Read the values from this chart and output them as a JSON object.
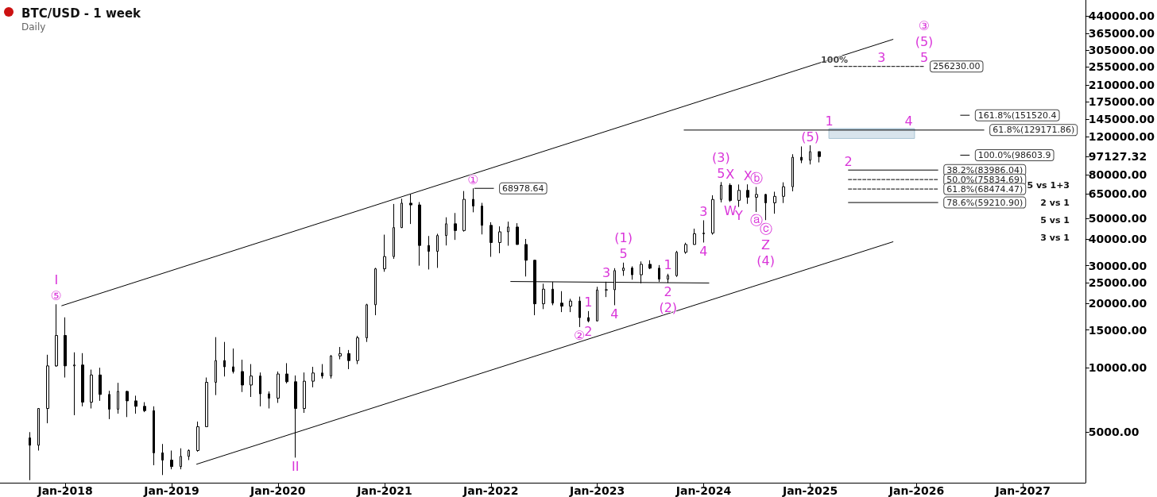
{
  "chart_data": {
    "type": "candlestick",
    "title": "BTC/USD - 1 week",
    "subtitle": "Daily",
    "color": "#000000",
    "x": [
      "2017-09",
      "2017-10",
      "2017-11",
      "2017-12",
      "2018-01",
      "2018-02",
      "2018-03",
      "2018-04",
      "2018-05",
      "2018-06",
      "2018-07",
      "2018-08",
      "2018-09",
      "2018-10",
      "2018-11",
      "2018-12",
      "2019-01",
      "2019-02",
      "2019-03",
      "2019-04",
      "2019-05",
      "2019-06",
      "2019-07",
      "2019-08",
      "2019-09",
      "2019-10",
      "2019-11",
      "2019-12",
      "2020-01",
      "2020-02",
      "2020-03",
      "2020-04",
      "2020-05",
      "2020-06",
      "2020-07",
      "2020-08",
      "2020-09",
      "2020-10",
      "2020-11",
      "2020-12",
      "2021-01",
      "2021-02",
      "2021-03",
      "2021-04",
      "2021-05",
      "2021-06",
      "2021-07",
      "2021-08",
      "2021-09",
      "2021-10",
      "2021-11",
      "2021-12",
      "2022-01",
      "2022-02",
      "2022-03",
      "2022-04",
      "2022-05",
      "2022-06",
      "2022-07",
      "2022-08",
      "2022-09",
      "2022-10",
      "2022-11",
      "2022-12",
      "2023-01",
      "2023-02",
      "2023-03",
      "2023-04",
      "2023-05",
      "2023-06",
      "2023-07",
      "2023-08",
      "2023-09",
      "2023-10",
      "2023-11",
      "2023-12",
      "2024-01",
      "2024-02",
      "2024-03",
      "2024-04",
      "2024-05",
      "2024-06",
      "2024-07",
      "2024-08",
      "2024-09",
      "2024-10",
      "2024-11",
      "2024-12",
      "2025-01",
      "2025-02"
    ],
    "ohlc": [
      [
        4700,
        5000,
        2980,
        4340
      ],
      [
        4340,
        6470,
        4100,
        6450
      ],
      [
        6450,
        11500,
        5500,
        10200
      ],
      [
        10200,
        19800,
        10100,
        14150
      ],
      [
        14150,
        17200,
        9000,
        10200
      ],
      [
        10200,
        11800,
        6000,
        10300
      ],
      [
        10300,
        11700,
        6600,
        6900
      ],
      [
        6900,
        9800,
        6450,
        9250
      ],
      [
        9250,
        10000,
        7000,
        7500
      ],
      [
        7500,
        7800,
        5750,
        6400
      ],
      [
        6400,
        8500,
        6100,
        7750
      ],
      [
        7750,
        7800,
        5880,
        7000
      ],
      [
        7000,
        7400,
        6100,
        6600
      ],
      [
        6600,
        6900,
        6200,
        6300
      ],
      [
        6300,
        6600,
        3500,
        4000
      ],
      [
        4000,
        4400,
        3150,
        3700
      ],
      [
        3700,
        4100,
        3350,
        3450
      ],
      [
        3450,
        4200,
        3350,
        3850
      ],
      [
        3850,
        4150,
        3700,
        4100
      ],
      [
        4100,
        5600,
        4050,
        5300
      ],
      [
        5300,
        9000,
        5300,
        8550
      ],
      [
        8550,
        13900,
        7450,
        10800
      ],
      [
        10800,
        13200,
        9100,
        10100
      ],
      [
        10100,
        12300,
        9400,
        9600
      ],
      [
        9600,
        10900,
        7700,
        8300
      ],
      [
        8300,
        10400,
        7300,
        9150
      ],
      [
        9150,
        9500,
        6600,
        7550
      ],
      [
        7550,
        7750,
        6450,
        7200
      ],
      [
        7200,
        9600,
        6850,
        9350
      ],
      [
        9350,
        10500,
        8450,
        8600
      ],
      [
        8600,
        9200,
        3800,
        6450
      ],
      [
        6450,
        9500,
        6150,
        8650
      ],
      [
        8650,
        10100,
        8100,
        9450
      ],
      [
        9450,
        10400,
        8900,
        9150
      ],
      [
        9150,
        11450,
        8900,
        11350
      ],
      [
        11350,
        12500,
        10950,
        11650
      ],
      [
        11650,
        12100,
        9850,
        10800
      ],
      [
        10800,
        14100,
        10400,
        13800
      ],
      [
        13800,
        19900,
        13200,
        19700
      ],
      [
        19700,
        29300,
        17600,
        29000
      ],
      [
        29000,
        41900,
        28100,
        33100
      ],
      [
        33100,
        58300,
        32300,
        45200
      ],
      [
        45200,
        61700,
        45000,
        58800
      ],
      [
        58800,
        64800,
        47000,
        57700
      ],
      [
        57700,
        59500,
        30000,
        37300
      ],
      [
        37300,
        41300,
        28800,
        35000
      ],
      [
        35000,
        42300,
        29300,
        41500
      ],
      [
        41500,
        50500,
        37300,
        47100
      ],
      [
        47100,
        52900,
        39600,
        43800
      ],
      [
        43800,
        67000,
        43300,
        61300
      ],
      [
        61300,
        68978.64,
        53300,
        57000
      ],
      [
        57000,
        59000,
        42000,
        46300
      ],
      [
        46300,
        47900,
        33000,
        38500
      ],
      [
        38500,
        45800,
        34300,
        43200
      ],
      [
        43200,
        48200,
        37200,
        45500
      ],
      [
        45500,
        47400,
        37600,
        37700
      ],
      [
        37700,
        40000,
        26700,
        31800
      ],
      [
        31800,
        31900,
        17600,
        19900
      ],
      [
        19900,
        24700,
        18800,
        23300
      ],
      [
        23300,
        25200,
        19600,
        20050
      ],
      [
        20050,
        22800,
        18200,
        19400
      ],
      [
        19400,
        21000,
        18200,
        20500
      ],
      [
        20500,
        21500,
        15500,
        17150
      ],
      [
        17150,
        18400,
        16300,
        16550
      ],
      [
        16550,
        23900,
        16500,
        23100
      ],
      [
        23100,
        25250,
        21400,
        23150
      ],
      [
        23150,
        29200,
        19600,
        28450
      ],
      [
        28450,
        31000,
        26900,
        29250
      ],
      [
        29250,
        29800,
        25800,
        27200
      ],
      [
        27200,
        31400,
        24800,
        30450
      ],
      [
        30450,
        31800,
        28900,
        29200
      ],
      [
        29200,
        30200,
        25200,
        25950
      ],
      [
        25950,
        27500,
        24900,
        26950
      ],
      [
        26950,
        35200,
        26600,
        34650
      ],
      [
        34650,
        38400,
        34100,
        37700
      ],
      [
        37700,
        44700,
        37600,
        42300
      ],
      [
        42300,
        48900,
        38500,
        42600
      ],
      [
        42600,
        64000,
        41900,
        61200
      ],
      [
        61200,
        73800,
        59300,
        71300
      ],
      [
        71300,
        72800,
        59600,
        60600
      ],
      [
        60600,
        71900,
        56500,
        67500
      ],
      [
        67500,
        72000,
        58400,
        62700
      ],
      [
        62700,
        70000,
        53500,
        64600
      ],
      [
        64600,
        65000,
        49000,
        59000
      ],
      [
        59000,
        66500,
        52500,
        63300
      ],
      [
        63300,
        73600,
        58900,
        70200
      ],
      [
        70200,
        99600,
        66800,
        96400
      ],
      [
        96400,
        108300,
        90500,
        93400
      ],
      [
        93400,
        109600,
        89200,
        102400
      ],
      [
        102400,
        102500,
        91200,
        97127.32
      ]
    ],
    "series": [
      {
        "type": "line",
        "color": "#000000",
        "line_style": "solid",
        "x": [
          "2017-12-20",
          "2025-10-12"
        ],
        "values": [
          19500,
          343000
        ]
      },
      {
        "type": "line",
        "color": "#000000",
        "line_style": "solid",
        "x": [
          "2019-03-28",
          "2025-10-12"
        ],
        "values": [
          3540,
          38800
        ]
      },
      {
        "type": "line",
        "color": "#000000",
        "line_style": "solid",
        "x": [
          "2022-03-10",
          "2024-01-19"
        ],
        "values": [
          25300,
          24900
        ]
      },
      {
        "type": "line",
        "name": "68978.64",
        "color": "#000000",
        "line_style": "solid",
        "x": [
          "2021-11-06",
          "2022-01-10"
        ],
        "values": [
          68978.64,
          68978.64
        ]
      },
      {
        "type": "line",
        "name": "61.8%(129171.86)",
        "color": "#000000",
        "line_style": "solid",
        "x": [
          "2023-10-26",
          "2026-08-20"
        ],
        "values": [
          129171.86,
          129171.86
        ]
      },
      {
        "type": "line",
        "color": "#a9c4d4",
        "line_style": "solid",
        "x": [
          "2025-03-06",
          "2025-12-25"
        ],
        "values": [
          131000,
          131000
        ],
        "lower": [
          118000,
          118000
        ],
        "upper": [
          131000,
          131000
        ]
      },
      {
        "type": "line",
        "name": "256230.00",
        "color": "#000000",
        "line_style": "dashed",
        "x": [
          "2025-03-25",
          "2026-01-27"
        ],
        "values": [
          256230,
          256230
        ]
      },
      {
        "type": "line",
        "name": "38.2%(83986.04)",
        "color": "#000000",
        "line_style": "solid",
        "x": [
          "2025-05-12",
          "2026-03-15"
        ],
        "values": [
          83986.04,
          83986.04
        ]
      },
      {
        "type": "line",
        "name": "50.0%(75834.69)",
        "color": "#000000",
        "line_style": "dashed",
        "x": [
          "2025-05-12",
          "2026-03-15"
        ],
        "values": [
          75834.69,
          75834.69
        ]
      },
      {
        "type": "line",
        "name": "61.8%(68474.47)",
        "color": "#000000",
        "line_style": "dashed",
        "x": [
          "2025-05-12",
          "2026-03-15"
        ],
        "values": [
          68474.47,
          68474.47
        ]
      },
      {
        "type": "line",
        "name": "78.6%(59210.90)",
        "color": "#000000",
        "line_style": "solid",
        "x": [
          "2025-05-12",
          "2026-03-15"
        ],
        "values": [
          59210.9,
          59210.9
        ]
      },
      {
        "type": "line",
        "name": "161.8%(151520.4",
        "color": "#000000",
        "line_style": "solid",
        "x": [
          "2026-06-01",
          "2026-07-01"
        ],
        "values": [
          151520.4,
          151520.4
        ]
      },
      {
        "type": "line",
        "name": "100.0%(98603.9",
        "color": "#000000",
        "line_style": "solid",
        "x": [
          "2026-06-01",
          "2026-07-01"
        ],
        "values": [
          98603.9,
          98603.9
        ]
      }
    ],
    "annotations": [
      {
        "text": "⑤",
        "x": "2017-12",
        "y": 19800
      },
      {
        "text": "I",
        "x": "2017-12",
        "y": 19800
      },
      {
        "text": "II",
        "x": "2020-03",
        "y": 3800
      },
      {
        "text": "①",
        "x": "2021-11",
        "y": 68978.64
      },
      {
        "text": "②",
        "x": "2022-11",
        "y": 15500
      },
      {
        "text": "2",
        "x": "2022-12",
        "y": 16300
      },
      {
        "text": "1",
        "x": "2022-12",
        "y": 18400
      },
      {
        "text": "3",
        "x": "2023-02",
        "y": 25250
      },
      {
        "text": "4",
        "x": "2023-03",
        "y": 19600
      },
      {
        "text": "5",
        "x": "2023-04",
        "y": 31000
      },
      {
        "text": "(1)",
        "x": "2023-04",
        "y": 31000
      },
      {
        "text": "1",
        "x": "2023-09",
        "y": 27500
      },
      {
        "text": "2",
        "x": "2023-09",
        "y": 24900
      },
      {
        "text": "(2)",
        "x": "2023-09",
        "y": 24900
      },
      {
        "text": "3",
        "x": "2024-01",
        "y": 48900
      },
      {
        "text": "4",
        "x": "2024-01",
        "y": 38500
      },
      {
        "text": "5",
        "x": "2024-03",
        "y": 73800
      },
      {
        "text": "(3)",
        "x": "2024-03",
        "y": 73800
      },
      {
        "text": "X",
        "x": "2024-04",
        "y": 72800
      },
      {
        "text": "W",
        "x": "2024-04",
        "y": 59600
      },
      {
        "text": "Y",
        "x": "2024-05",
        "y": 56500
      },
      {
        "text": "X",
        "x": "2024-06",
        "y": 72000
      },
      {
        "text": "ⓐ",
        "x": "2024-07",
        "y": 53500
      },
      {
        "text": "ⓑ",
        "x": "2024-07",
        "y": 70000
      },
      {
        "text": "ⓒ",
        "x": "2024-08",
        "y": 49000
      },
      {
        "text": "Z",
        "x": "2024-08",
        "y": 49000
      },
      {
        "text": "(4)",
        "x": "2024-08",
        "y": 49000
      },
      {
        "text": "(5)",
        "x": "2025-01",
        "y": 109600
      },
      {
        "text": "1",
        "x": "2025-03-07",
        "y": 129171.86
      },
      {
        "text": "2",
        "x": "2025-05-12",
        "y": 83986.04
      },
      {
        "text": "3",
        "x": "2025-09-03",
        "y": 256230
      },
      {
        "text": "4",
        "x": "2025-12-05",
        "y": 129171.86
      },
      {
        "text": "5",
        "x": "2026-01-27",
        "y": 256230
      },
      {
        "text": "(5)",
        "x": "2026-01-27",
        "y": 256230
      },
      {
        "text": "③",
        "x": "2026-01-27",
        "y": 256230
      },
      {
        "text": "100%",
        "x": "2025-03-25",
        "y": 256230
      },
      "5 vs 1+3",
      "2 vs 1",
      "5 vs 1",
      "3 vs 1"
    ],
    "xlim": [
      "2017-05-22",
      "2027-08-03"
    ],
    "xticks": [
      {
        "value": "2018-01",
        "label": "Jan-2018"
      },
      {
        "value": "2019-01",
        "label": "Jan-2019"
      },
      {
        "value": "2020-01",
        "label": "Jan-2020"
      },
      {
        "value": "2021-01",
        "label": "Jan-2021"
      },
      {
        "value": "2022-01",
        "label": "Jan-2022"
      },
      {
        "value": "2023-01",
        "label": "Jan-2023"
      },
      {
        "value": "2024-01",
        "label": "Jan-2024"
      },
      {
        "value": "2025-01",
        "label": "Jan-2025"
      },
      {
        "value": "2026-01",
        "label": "Jan-2026"
      },
      {
        "value": "2027-01",
        "label": "Jan-2027"
      }
    ],
    "ylim": [
      2900,
      524000
    ],
    "yticks": [
      {
        "value": 5000,
        "label": "5000.00"
      },
      {
        "value": 10000,
        "label": "10000.00"
      },
      {
        "value": 15000,
        "label": "15000.00"
      },
      {
        "value": 20000,
        "label": "20000.00"
      },
      {
        "value": 25000,
        "label": "25000.00"
      },
      {
        "value": 30000,
        "label": "30000.00"
      },
      {
        "value": 40000,
        "label": "40000.00"
      },
      {
        "value": 50000,
        "label": "50000.00"
      },
      {
        "value": 65000,
        "label": "65000.00"
      },
      {
        "value": 80000,
        "label": "80000.00"
      },
      {
        "value": 97127.32,
        "label": "97127.32"
      },
      {
        "value": 120000,
        "label": "120000.00"
      },
      {
        "value": 145000,
        "label": "145000.00"
      },
      {
        "value": 175000,
        "label": "175000.00"
      },
      {
        "value": 210000,
        "label": "210000.00"
      },
      {
        "value": 255000,
        "label": "255000.00"
      },
      {
        "value": 305000,
        "label": "305000.00"
      },
      {
        "value": 365000,
        "label": "365000.00"
      },
      {
        "value": 440000,
        "label": "440000.00"
      }
    ],
    "log": "y",
    "grid": false,
    "legend": false
  }
}
